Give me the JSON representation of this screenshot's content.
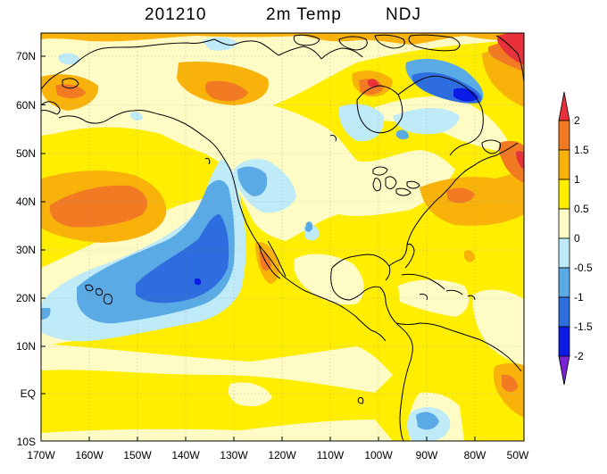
{
  "title": {
    "date": "201210",
    "variable": "2m Temp",
    "season": "NDJ"
  },
  "axes": {
    "lat_labels": [
      "70N",
      "60N",
      "50N",
      "40N",
      "30N",
      "20N",
      "10N",
      "EQ",
      "10S"
    ],
    "lat_values": [
      70,
      60,
      50,
      40,
      30,
      20,
      10,
      0,
      -10
    ],
    "lon_labels": [
      "170W",
      "160W",
      "150W",
      "140W",
      "130W",
      "120W",
      "110W",
      "100W",
      "90W",
      "80W",
      "70W",
      "60W",
      "50W"
    ],
    "lon_values": [
      -170,
      -160,
      -150,
      -140,
      -130,
      -120,
      -110,
      -100,
      -90,
      -80,
      -70,
      -60,
      -50
    ]
  },
  "colorbar": {
    "labels": [
      "2",
      "1.5",
      "1",
      "0.5",
      "0",
      "-0.5",
      "-1",
      "-1.5",
      "-2"
    ],
    "colors": {
      "gt2": "#e8313a",
      "1.5to2": "#f27a22",
      "1to1.5": "#f8b20a",
      "0.5to1": "#ffee00",
      "0to0.5": "#fefcc4",
      "-0.5to0": "#bfeaf8",
      "-1to-0.5": "#5aaae6",
      "-1.5to-1": "#2e6de0",
      "-2to-1.5": "#0a1ce6",
      "lt-2": "#7a22d6"
    }
  }
}
